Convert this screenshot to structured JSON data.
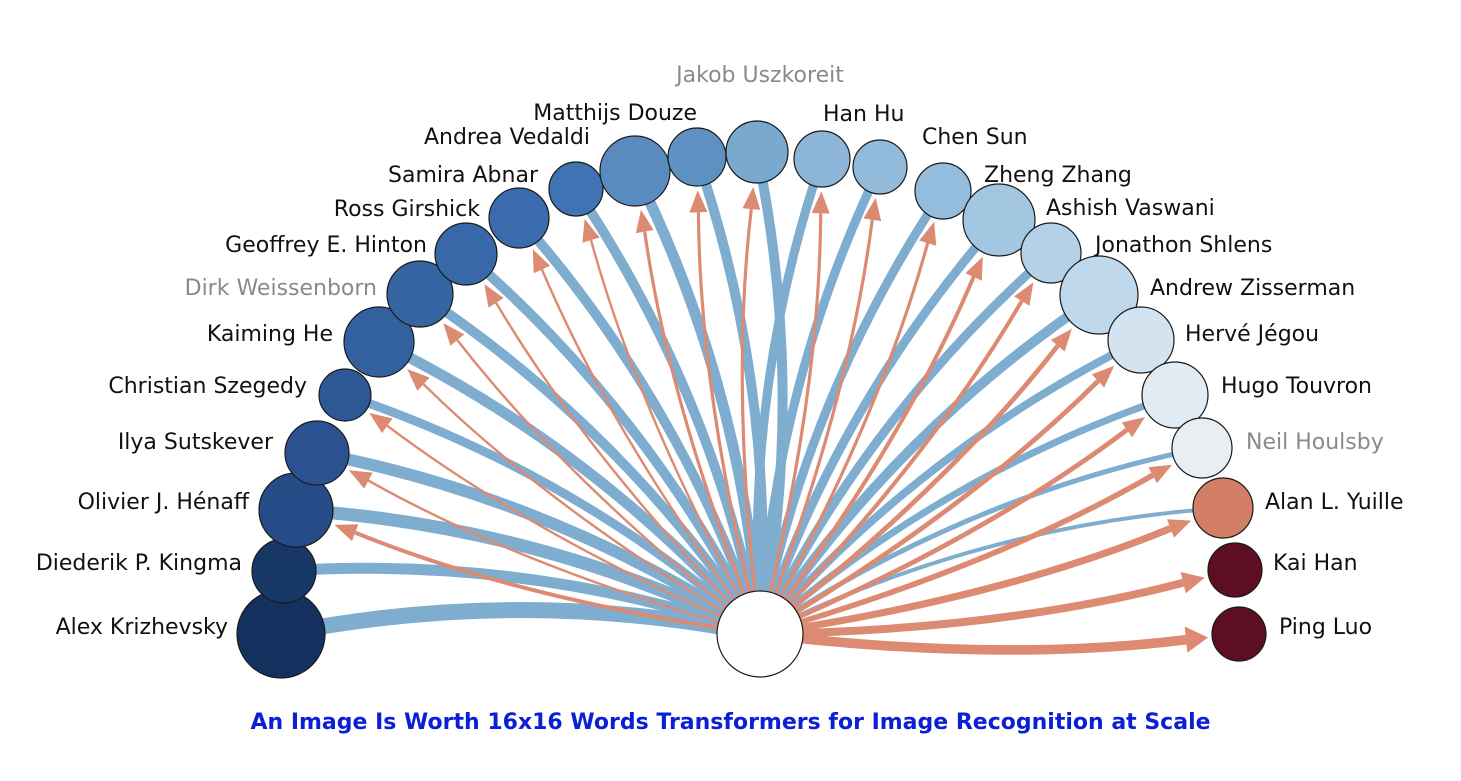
{
  "caption": {
    "text": "An Image Is Worth 16x16 Words Transformers for Image Recognition at Scale",
    "color": "#0a1fd6"
  },
  "colors": {
    "outgoing_edge": "#7fadcf",
    "incoming_edge": "#dc8a72",
    "label_default": "#111111",
    "label_muted": "#8a8a8a",
    "node_stroke": "#1a1a1a",
    "center_fill": "#ffffff"
  },
  "center_node": {
    "label": ""
  },
  "nodes": [
    {
      "name": "Alex Krizhevsky",
      "fill": "#14305f",
      "outgoing": 16,
      "incoming": 0,
      "muted": false
    },
    {
      "name": "Diederik P. Kingma",
      "fill": "#173767",
      "outgoing": 11,
      "incoming": 0,
      "muted": false
    },
    {
      "name": "Olivier J. Hénaff",
      "fill": "#264c87",
      "outgoing": 13,
      "incoming": 5,
      "muted": false
    },
    {
      "name": "Ilya Sutskever",
      "fill": "#2b5190",
      "outgoing": 12,
      "incoming": 3,
      "muted": false
    },
    {
      "name": "Christian Szegedy",
      "fill": "#2e5796",
      "outgoing": 9,
      "incoming": 3,
      "muted": false
    },
    {
      "name": "Kaiming He",
      "fill": "#33619f",
      "outgoing": 11,
      "incoming": 3,
      "muted": false
    },
    {
      "name": "Dirk Weissenborn",
      "fill": "#3665a4",
      "outgoing": 10,
      "incoming": 3,
      "muted": true
    },
    {
      "name": "Geoffrey E. Hinton",
      "fill": "#3868a8",
      "outgoing": 10,
      "incoming": 3,
      "muted": false
    },
    {
      "name": "Ross Girshick",
      "fill": "#3a6cad",
      "outgoing": 10,
      "incoming": 3,
      "muted": false
    },
    {
      "name": "Samira Abnar",
      "fill": "#4073b4",
      "outgoing": 10,
      "incoming": 3,
      "muted": false
    },
    {
      "name": "Andrea Vedaldi",
      "fill": "#5a8bbe",
      "outgoing": 11,
      "incoming": 4,
      "muted": false
    },
    {
      "name": "Matthijs Douze",
      "fill": "#5e91c2",
      "outgoing": 10,
      "incoming": 4,
      "muted": false
    },
    {
      "name": "Jakob Uszkoreit",
      "fill": "#7aa9cf",
      "outgoing": 10,
      "incoming": 4,
      "muted": true
    },
    {
      "name": "Han Hu",
      "fill": "#8db5d7",
      "outgoing": 9,
      "incoming": 4,
      "muted": false
    },
    {
      "name": "Chen Sun",
      "fill": "#92badb",
      "outgoing": 9,
      "incoming": 4,
      "muted": false
    },
    {
      "name": "Zheng Zhang",
      "fill": "#94bcdc",
      "outgoing": 9,
      "incoming": 4,
      "muted": false
    },
    {
      "name": "Ashish Vaswani",
      "fill": "#a3c7e1",
      "outgoing": 9,
      "incoming": 5,
      "muted": false
    },
    {
      "name": "Jonathon Shlens",
      "fill": "#b4d1e7",
      "outgoing": 9,
      "incoming": 5,
      "muted": false
    },
    {
      "name": "Andrew Zisserman",
      "fill": "#c0d8eb",
      "outgoing": 10,
      "incoming": 6,
      "muted": false
    },
    {
      "name": "Hervé Jégou",
      "fill": "#d3e3f0",
      "outgoing": 8,
      "incoming": 6,
      "muted": false
    },
    {
      "name": "Hugo Touvron",
      "fill": "#e0ebf4",
      "outgoing": 7,
      "incoming": 6,
      "muted": false
    },
    {
      "name": "Neil Houlsby",
      "fill": "#e9eef3",
      "outgoing": 5,
      "incoming": 7,
      "muted": true
    },
    {
      "name": "Alan L. Yuille",
      "fill": "#d37f68",
      "outgoing": 4,
      "incoming": 9,
      "muted": false
    },
    {
      "name": "Kai Han",
      "fill": "#5e0e22",
      "outgoing": 0,
      "incoming": 10,
      "muted": false
    },
    {
      "name": "Ping Luo",
      "fill": "#5e0e22",
      "outgoing": 0,
      "incoming": 12,
      "muted": false
    }
  ]
}
